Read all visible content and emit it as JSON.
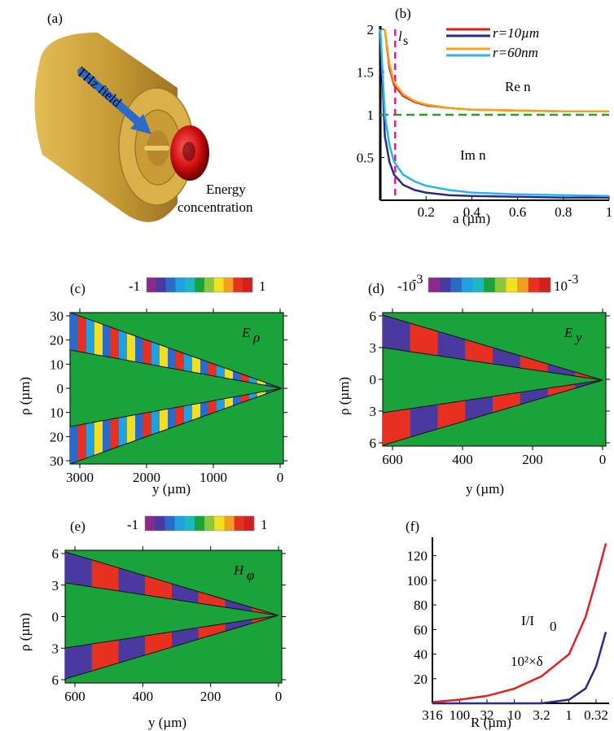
{
  "panels": {
    "a": {
      "label": "(a)",
      "thz_label": "THz field",
      "energy_line1": "Energy",
      "energy_line2": "concentration"
    },
    "b": {
      "label": "(b)",
      "legend_r1": "r=10µm",
      "legend_r2": "r=60nm",
      "ls_label": "l",
      "ls_sub": "s",
      "re_label": "Re n",
      "im_label": "Im n",
      "xlabel": "a (µm)"
    },
    "c": {
      "label": "(c)",
      "field": "E",
      "field_sub": "ρ",
      "cb_min": "-1",
      "cb_max": "1",
      "ylabel": "ρ (µm)",
      "xlabel": "y (µm)"
    },
    "d": {
      "label": "(d)",
      "field": "E",
      "field_sub": "y",
      "cb_min": "-10",
      "cb_min_exp": "-3",
      "cb_max": "10",
      "cb_max_exp": "-3",
      "ylabel": "ρ (µm)",
      "xlabel": "y (µm)"
    },
    "e": {
      "label": "(e)",
      "field": "H",
      "field_sub": "φ",
      "cb_min": "-1",
      "cb_max": "1",
      "ylabel": "ρ (µm)",
      "xlabel": "y (µm)"
    },
    "f": {
      "label": "(f)",
      "curve1_label": "I/I",
      "curve1_sub": "0",
      "curve2_label": "10²×δ",
      "xlabel": "R (µm)"
    }
  },
  "colors": {
    "green_bg": "#1aa33a",
    "gold": "#c8a040",
    "red_curve": "#e32020",
    "navy_curve": "#2a2a8c",
    "orange_curve": "#f5a21a",
    "cyan_curve": "#2ab4e8",
    "dash_green": "#2aa02a",
    "dash_magenta": "#e0208a"
  },
  "colorbar": [
    "#8a2a8a",
    "#4a3aa0",
    "#2a6ac8",
    "#20a0e0",
    "#20b8c0",
    "#1aa33a",
    "#8ac83a",
    "#f0e020",
    "#f0a020",
    "#e83020",
    "#d02020"
  ],
  "chart_data": [
    {
      "panel": "b",
      "type": "line",
      "xlabel": "a (µm)",
      "ylabel": "",
      "xlim": [
        0,
        1
      ],
      "ylim": [
        0,
        2
      ],
      "xticks": [
        "0.2",
        "0.4",
        "0.6",
        "0.8",
        "1"
      ],
      "yticks": [
        "0.5",
        "1",
        "1.5",
        "2"
      ],
      "series": [
        {
          "name": "r=10µm",
          "part": "Re",
          "x": [
            0.02,
            0.04,
            0.06,
            0.1,
            0.15,
            0.2,
            0.3,
            0.4,
            0.6,
            0.8,
            1.0
          ],
          "y": [
            2.0,
            1.55,
            1.35,
            1.22,
            1.15,
            1.11,
            1.08,
            1.06,
            1.05,
            1.04,
            1.04
          ]
        },
        {
          "name": "r=60nm",
          "part": "Re",
          "x": [
            0.02,
            0.04,
            0.06,
            0.1,
            0.15,
            0.2,
            0.3,
            0.4,
            0.6,
            0.8,
            1.0
          ],
          "y": [
            2.0,
            1.6,
            1.38,
            1.24,
            1.16,
            1.12,
            1.08,
            1.06,
            1.05,
            1.04,
            1.04
          ]
        },
        {
          "name": "r=10µm",
          "part": "Im",
          "x": [
            0.0,
            0.02,
            0.04,
            0.06,
            0.1,
            0.15,
            0.2,
            0.3,
            0.4,
            0.6,
            0.8,
            1.0
          ],
          "y": [
            2.0,
            0.75,
            0.45,
            0.3,
            0.18,
            0.12,
            0.09,
            0.06,
            0.05,
            0.04,
            0.03,
            0.03
          ]
        },
        {
          "name": "r=60nm",
          "part": "Im",
          "x": [
            0.0,
            0.02,
            0.04,
            0.06,
            0.1,
            0.15,
            0.2,
            0.3,
            0.4,
            0.6,
            0.8,
            1.0
          ],
          "y": [
            2.0,
            1.0,
            0.65,
            0.45,
            0.3,
            0.22,
            0.17,
            0.12,
            0.09,
            0.07,
            0.06,
            0.05
          ]
        }
      ],
      "reference_line": 1.0,
      "ls_x": 0.065
    },
    {
      "panel": "f",
      "type": "line",
      "xlabel": "R (µm)",
      "xticks": [
        "316",
        "100",
        "32",
        "10",
        "3.2",
        "1",
        "0.32"
      ],
      "yticks": [
        "20",
        "40",
        "60",
        "80",
        "100",
        "120"
      ],
      "ylim": [
        0,
        135
      ],
      "series": [
        {
          "name": "I/I0",
          "x": [
            316,
            100,
            32,
            10,
            3.2,
            1,
            0.5,
            0.32,
            0.2
          ],
          "y": [
            1,
            3,
            6,
            12,
            22,
            40,
            70,
            100,
            130
          ]
        },
        {
          "name": "10²×δ",
          "x": [
            316,
            100,
            32,
            10,
            3.2,
            1,
            0.5,
            0.32,
            0.2
          ],
          "y": [
            0,
            0,
            0,
            0,
            0,
            3,
            12,
            30,
            58
          ]
        }
      ]
    }
  ],
  "axes": {
    "c": {
      "xticks": [
        "3000",
        "2000",
        "1000",
        "0"
      ],
      "yticks": [
        "30",
        "20",
        "10",
        "0",
        "10",
        "20",
        "30"
      ]
    },
    "d": {
      "xticks": [
        "600",
        "400",
        "200",
        "0"
      ],
      "yticks": [
        "6",
        "3",
        "0",
        "3",
        "6"
      ]
    },
    "e": {
      "xticks": [
        "600",
        "400",
        "200",
        "0"
      ],
      "yticks": [
        "6",
        "3",
        "0",
        "3",
        "6"
      ]
    }
  }
}
